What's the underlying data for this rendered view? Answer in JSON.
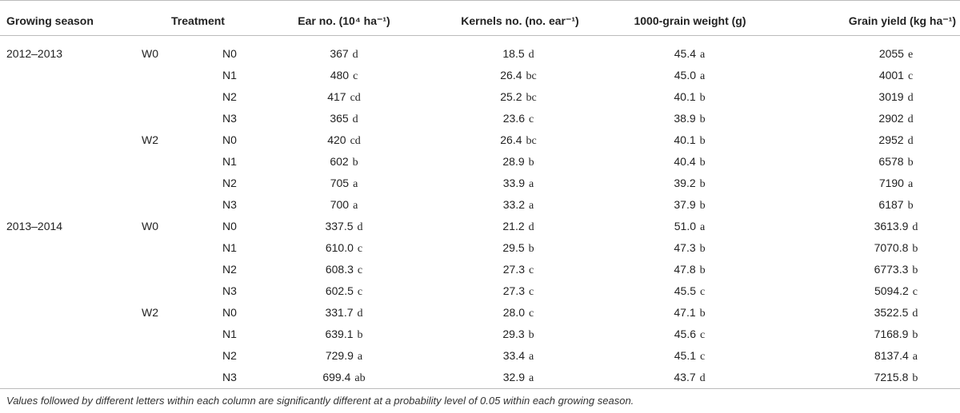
{
  "table": {
    "header": [
      "Growing season",
      "Treatment",
      "Ear no. (10⁴ ha⁻¹)",
      "Kernels no. (no. ear⁻¹)",
      "1000-grain weight (g)",
      "Grain yield (kg ha⁻¹)"
    ],
    "rows": [
      [
        "2012–2013",
        "W0",
        "N0",
        "367",
        "d",
        "18.5",
        "d",
        "45.4",
        "a",
        "2055",
        "e"
      ],
      [
        null,
        null,
        "N1",
        "480",
        "c",
        "26.4",
        "bc",
        "45.0",
        "a",
        "4001",
        "c"
      ],
      [
        null,
        null,
        "N2",
        "417",
        "cd",
        "25.2",
        "bc",
        "40.1",
        "b",
        "3019",
        "d"
      ],
      [
        null,
        null,
        "N3",
        "365",
        "d",
        "23.6",
        "c",
        "38.9",
        "b",
        "2902",
        "d"
      ],
      [
        null,
        "W2",
        "N0",
        "420",
        "cd",
        "26.4",
        "bc",
        "40.1",
        "b",
        "2952",
        "d"
      ],
      [
        null,
        null,
        "N1",
        "602",
        "b",
        "28.9",
        "b",
        "40.4",
        "b",
        "6578",
        "b"
      ],
      [
        null,
        null,
        "N2",
        "705",
        "a",
        "33.9",
        "a",
        "39.2",
        "b",
        "7190",
        "a"
      ],
      [
        null,
        null,
        "N3",
        "700",
        "a",
        "33.2",
        "a",
        "37.9",
        "b",
        "6187",
        "b"
      ],
      [
        "2013–2014",
        "W0",
        "N0",
        "337.5",
        "d",
        "21.2",
        "d",
        "51.0",
        "a",
        "3613.9",
        "d"
      ],
      [
        null,
        null,
        "N1",
        "610.0",
        "c",
        "29.5",
        "b",
        "47.3",
        "b",
        "7070.8",
        "b"
      ],
      [
        null,
        null,
        "N2",
        "608.3",
        "c",
        "27.3",
        "c",
        "47.8",
        "b",
        "6773.3",
        "b"
      ],
      [
        null,
        null,
        "N3",
        "602.5",
        "c",
        "27.3",
        "c",
        "45.5",
        "c",
        "5094.2",
        "c"
      ],
      [
        null,
        "W2",
        "N0",
        "331.7",
        "d",
        "28.0",
        "c",
        "47.1",
        "b",
        "3522.5",
        "d"
      ],
      [
        null,
        null,
        "N1",
        "639.1",
        "b",
        "29.3",
        "b",
        "45.6",
        "c",
        "7168.9",
        "b"
      ],
      [
        null,
        null,
        "N2",
        "729.9",
        "a",
        "33.4",
        "a",
        "45.1",
        "c",
        "8137.4",
        "a"
      ],
      [
        null,
        null,
        "N3",
        "699.4",
        "ab",
        "32.9",
        "a",
        "43.7",
        "d",
        "7215.8",
        "b"
      ]
    ],
    "footnote": "Values followed by different letters within each column are significantly different at a probability level of 0.05 within each growing season."
  }
}
